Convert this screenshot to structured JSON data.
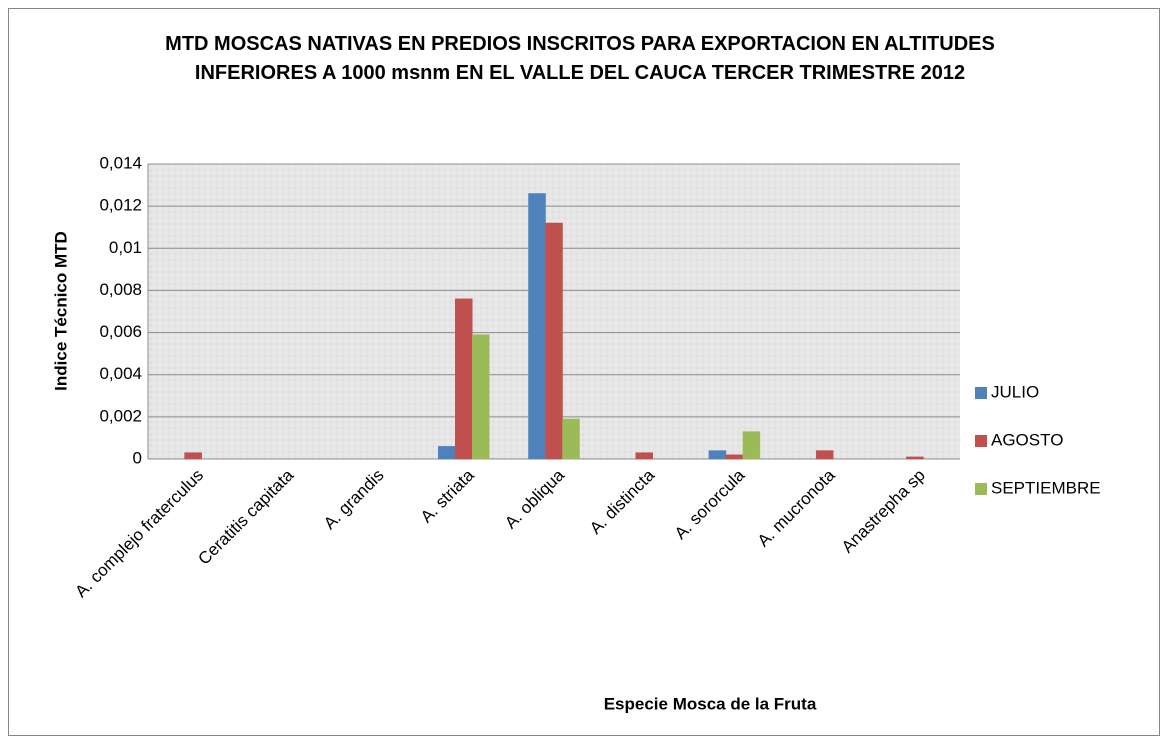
{
  "chart_data": {
    "type": "bar",
    "title": "MTD MOSCAS NATIVAS EN PREDIOS INSCRITOS PARA EXPORTACION EN ALTITUDES INFERIORES A 1000 msnm EN EL VALLE DEL CAUCA TERCER TRIMESTRE 2012",
    "x_label": "Especie Mosca de la Fruta",
    "y_label": "Indice Técnico MTD",
    "categories": [
      "A. complejo fraterculus",
      "Ceratitis capitata",
      "A. grandis",
      "A. striata",
      "A. obliqua",
      "A. distincta",
      "A. sororcula",
      "A. mucronota",
      "Anastrepha sp"
    ],
    "series": [
      {
        "name": "JULIO",
        "color": "#4f81bd",
        "values": [
          0,
          0,
          0,
          0.0006,
          0.0126,
          0,
          0.0004,
          0,
          0
        ]
      },
      {
        "name": "AGOSTO",
        "color": "#c0504d",
        "values": [
          0.0003,
          0,
          0,
          0.0076,
          0.0112,
          0.0003,
          0.0002,
          0.0004,
          0.0001
        ]
      },
      {
        "name": "SEPTIEMBRE",
        "color": "#9bbb59",
        "values": [
          0,
          0,
          0,
          0.0059,
          0.0019,
          0,
          0.0013,
          0,
          0
        ]
      }
    ],
    "ylim": [
      0,
      0.014
    ],
    "yticks": [
      0,
      {
        "value": 0.002,
        "label": "0,002"
      },
      {
        "value": 0.004,
        "label": "0,004"
      },
      {
        "value": 0.006,
        "label": "0,006"
      },
      {
        "value": 0.008,
        "label": "0,008"
      },
      {
        "value": 0.01,
        "label": "0,01"
      },
      {
        "value": 0.012,
        "label": "0,012"
      },
      {
        "value": 0.014,
        "label": "0,014"
      }
    ],
    "grid": true,
    "legend": "right"
  }
}
